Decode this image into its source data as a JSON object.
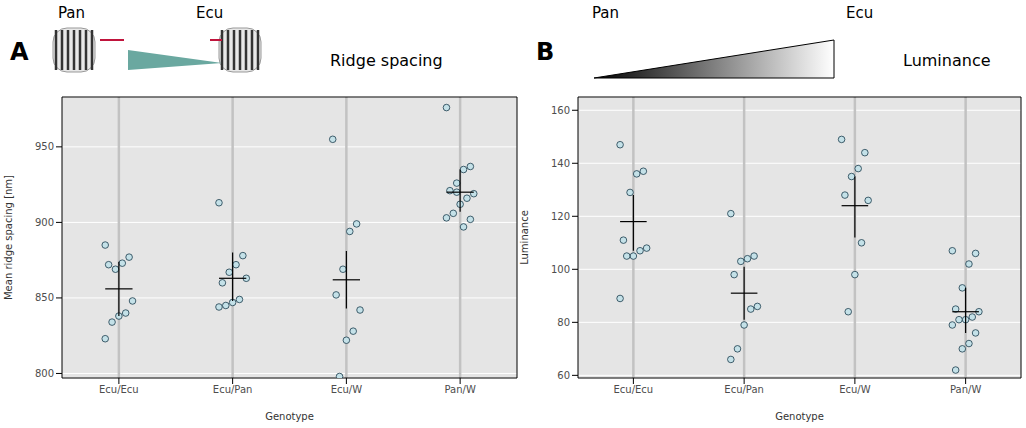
{
  "chart_data": [
    {
      "type": "scatter",
      "panel": "A",
      "title": "Ridge spacing",
      "scale_labels": [
        "Pan",
        "Ecu"
      ],
      "x_label": "Genotype",
      "y_label": "Mean ridge spacing [nm]",
      "categories": [
        "Ecu/Ecu",
        "Ecu/Pan",
        "Ecu/W",
        "Pan/W"
      ],
      "groups": [
        {
          "values": [
            885,
            877,
            873,
            869,
            872,
            848,
            840,
            838,
            834,
            823
          ],
          "mean": 856,
          "interval": [
            838,
            874
          ]
        },
        {
          "values": [
            913,
            878,
            872,
            867,
            860,
            863,
            849,
            847,
            845,
            844
          ],
          "mean": 863,
          "interval": [
            848,
            880
          ]
        },
        {
          "values": [
            955,
            899,
            894,
            869,
            852,
            842,
            828,
            822,
            798
          ],
          "mean": 862,
          "interval": [
            843,
            881
          ]
        },
        {
          "values": [
            976,
            937,
            935,
            926,
            921,
            919,
            916,
            912,
            906,
            903,
            902,
            897,
            920
          ],
          "mean": 920,
          "interval": [
            907,
            935
          ]
        }
      ],
      "color": "#c4e1e8",
      "ylim": [
        797,
        983
      ],
      "yticks": [
        800,
        850,
        900,
        950
      ],
      "grid": true
    },
    {
      "type": "scatter",
      "panel": "B",
      "title": "Luminance",
      "scale_labels": [
        "Pan",
        "Ecu"
      ],
      "x_label": "Genotype",
      "y_label": "Luminance",
      "categories": [
        "Ecu/Ecu",
        "Ecu/Pan",
        "Ecu/W",
        "Pan/W"
      ],
      "groups": [
        {
          "values": [
            147,
            137,
            136,
            129,
            111,
            108,
            107,
            105,
            105,
            89
          ],
          "mean": 118,
          "interval": [
            107,
            128
          ]
        },
        {
          "values": [
            121,
            105,
            104,
            103,
            98,
            86,
            85,
            79,
            70,
            66
          ],
          "mean": 91,
          "interval": [
            81,
            101
          ]
        },
        {
          "values": [
            149,
            144,
            138,
            135,
            128,
            126,
            110,
            98,
            84
          ],
          "mean": 124,
          "interval": [
            112,
            135
          ]
        },
        {
          "values": [
            107,
            106,
            102,
            93,
            85,
            84,
            82,
            81,
            81,
            79,
            76,
            72,
            70,
            62
          ],
          "mean": 84,
          "interval": [
            76,
            93
          ]
        }
      ],
      "color": "#c4e1e8",
      "ylim": [
        59,
        165
      ],
      "yticks": [
        60,
        80,
        100,
        120,
        140,
        160
      ],
      "grid": true
    }
  ]
}
